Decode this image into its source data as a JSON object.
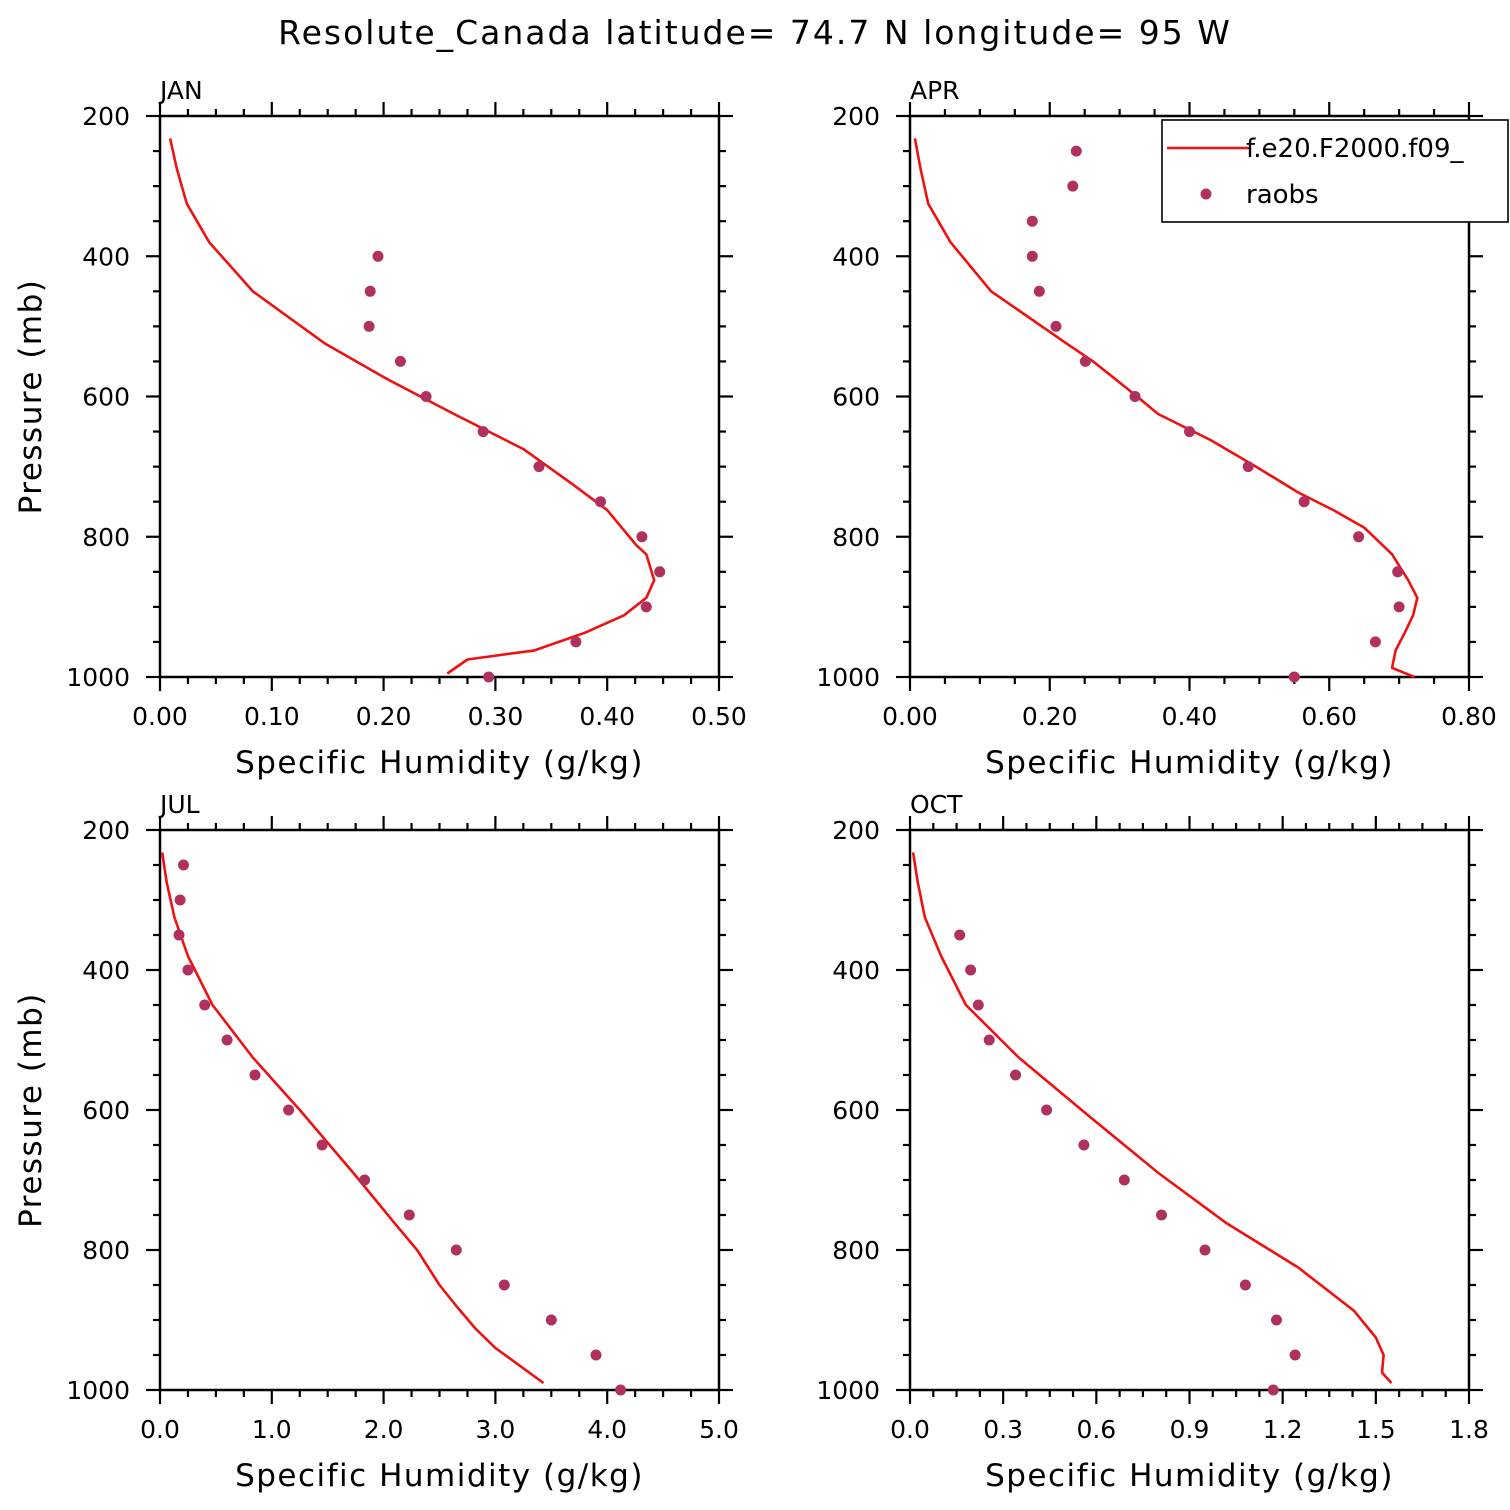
{
  "title": "Resolute_Canada  latitude= 74.7 N longitude= 95 W",
  "legend": {
    "model_label": "f.e20.F2000.f09_",
    "obs_label": "raobs"
  },
  "colors": {
    "model": "#ee1111",
    "obs": "#b03060"
  },
  "chart_data": [
    {
      "type": "line",
      "panel_label": "JAN",
      "xlabel": "Specific Humidity (g/kg)",
      "ylabel": "Pressure (mb)",
      "xlim": [
        0,
        0.5
      ],
      "ylim": [
        200,
        1000
      ],
      "y_inverted": true,
      "xticks": [
        0,
        0.1,
        0.2,
        0.3,
        0.4,
        0.5
      ],
      "xtick_labels": [
        "0.00",
        "0.10",
        "0.20",
        "0.30",
        "0.40",
        "0.50"
      ],
      "yticks": [
        200,
        400,
        600,
        800,
        1000
      ],
      "ytick_labels": [
        "200",
        "400",
        "600",
        "800",
        "1000"
      ],
      "series": [
        {
          "name": "f.e20.F2000.f09_",
          "kind": "line",
          "x": [
            0.009,
            0.015,
            0.024,
            0.044,
            0.083,
            0.148,
            0.203,
            0.263,
            0.325,
            0.369,
            0.4,
            0.426,
            0.435,
            0.442,
            0.435,
            0.415,
            0.38,
            0.335,
            0.275,
            0.257
          ],
          "y": [
            232,
            275,
            325,
            380,
            450,
            525,
            575,
            625,
            675,
            725,
            762,
            812,
            825,
            862,
            887,
            912,
            937,
            962,
            975,
            995
          ]
        },
        {
          "name": "raobs",
          "kind": "scatter",
          "x": [
            0.195,
            0.188,
            0.187,
            0.215,
            0.238,
            0.289,
            0.339,
            0.394,
            0.431,
            0.447,
            0.435,
            0.372,
            0.294
          ],
          "y": [
            400,
            450,
            500,
            550,
            600,
            650,
            700,
            750,
            800,
            850,
            900,
            950,
            1000
          ]
        }
      ]
    },
    {
      "type": "line",
      "panel_label": "APR",
      "xlabel": "Specific Humidity (g/kg)",
      "ylabel": "",
      "xlim": [
        0,
        0.8
      ],
      "ylim": [
        200,
        1000
      ],
      "y_inverted": true,
      "xticks": [
        0,
        0.2,
        0.4,
        0.6,
        0.8
      ],
      "xtick_labels": [
        "0.00",
        "0.20",
        "0.40",
        "0.60",
        "0.80"
      ],
      "yticks": [
        200,
        400,
        600,
        800,
        1000
      ],
      "ytick_labels": [
        "200",
        "400",
        "600",
        "800",
        "1000"
      ],
      "series": [
        {
          "name": "f.e20.F2000.f09_",
          "kind": "line",
          "x": [
            0.007,
            0.015,
            0.026,
            0.058,
            0.116,
            0.225,
            0.262,
            0.325,
            0.355,
            0.43,
            0.495,
            0.556,
            0.606,
            0.65,
            0.69,
            0.713,
            0.726,
            0.72,
            0.708,
            0.695,
            0.69,
            0.722
          ],
          "y": [
            232,
            275,
            325,
            380,
            450,
            525,
            550,
            600,
            625,
            662,
            700,
            737,
            762,
            787,
            825,
            862,
            887,
            912,
            937,
            962,
            987,
            1000
          ]
        },
        {
          "name": "raobs",
          "kind": "scatter",
          "x": [
            0.238,
            0.233,
            0.175,
            0.175,
            0.185,
            0.209,
            0.251,
            0.322,
            0.4,
            0.484,
            0.564,
            0.642,
            0.698,
            0.7,
            0.666,
            0.55
          ],
          "y": [
            250,
            300,
            350,
            400,
            450,
            500,
            550,
            600,
            650,
            700,
            750,
            800,
            850,
            900,
            950,
            1000
          ]
        }
      ]
    },
    {
      "type": "line",
      "panel_label": "JUL",
      "xlabel": "Specific Humidity (g/kg)",
      "ylabel": "Pressure (mb)",
      "xlim": [
        0,
        5
      ],
      "ylim": [
        200,
        1000
      ],
      "y_inverted": true,
      "xticks": [
        0,
        1,
        2,
        3,
        4,
        5
      ],
      "xtick_labels": [
        "0.0",
        "1.0",
        "2.0",
        "3.0",
        "4.0",
        "5.0"
      ],
      "yticks": [
        200,
        400,
        600,
        800,
        1000
      ],
      "ytick_labels": [
        "200",
        "400",
        "600",
        "800",
        "1000"
      ],
      "series": [
        {
          "name": "f.e20.F2000.f09_",
          "kind": "line",
          "x": [
            0.02,
            0.06,
            0.13,
            0.25,
            0.47,
            0.83,
            1.25,
            1.73,
            2.1,
            2.3,
            2.5,
            2.65,
            2.82,
            3.0,
            3.43
          ],
          "y": [
            232,
            275,
            325,
            380,
            450,
            525,
            600,
            690,
            762,
            800,
            850,
            880,
            912,
            940,
            990
          ]
        },
        {
          "name": "raobs",
          "kind": "scatter",
          "x": [
            0.21,
            0.18,
            0.17,
            0.25,
            0.4,
            0.6,
            0.85,
            1.15,
            1.45,
            1.83,
            2.23,
            2.65,
            3.08,
            3.5,
            3.9,
            4.12
          ],
          "y": [
            250,
            300,
            350,
            400,
            450,
            500,
            550,
            600,
            650,
            700,
            750,
            800,
            850,
            900,
            950,
            1000
          ]
        }
      ]
    },
    {
      "type": "line",
      "panel_label": "OCT",
      "xlabel": "Specific Humidity (g/kg)",
      "ylabel": "",
      "xlim": [
        0,
        1.8
      ],
      "ylim": [
        200,
        1000
      ],
      "y_inverted": true,
      "xticks": [
        0,
        0.3,
        0.6,
        0.9,
        1.2,
        1.5,
        1.8
      ],
      "xtick_labels": [
        "0.0",
        "0.3",
        "0.6",
        "0.9",
        "1.2",
        "1.5",
        "1.8"
      ],
      "yticks": [
        200,
        400,
        600,
        800,
        1000
      ],
      "ytick_labels": [
        "200",
        "400",
        "600",
        "800",
        "1000"
      ],
      "series": [
        {
          "name": "f.e20.F2000.f09_",
          "kind": "line",
          "x": [
            0.01,
            0.025,
            0.048,
            0.1,
            0.18,
            0.35,
            0.58,
            0.8,
            1.02,
            1.25,
            1.43,
            1.5,
            1.525,
            1.52,
            1.55
          ],
          "y": [
            232,
            275,
            325,
            380,
            450,
            525,
            610,
            690,
            762,
            825,
            887,
            925,
            950,
            975,
            990
          ]
        },
        {
          "name": "raobs",
          "kind": "scatter",
          "x": [
            0.16,
            0.195,
            0.22,
            0.255,
            0.34,
            0.44,
            0.56,
            0.69,
            0.81,
            0.95,
            1.08,
            1.18,
            1.24,
            1.17
          ],
          "y": [
            350,
            400,
            450,
            500,
            550,
            600,
            650,
            700,
            750,
            800,
            850,
            900,
            950,
            1000
          ]
        }
      ]
    }
  ]
}
